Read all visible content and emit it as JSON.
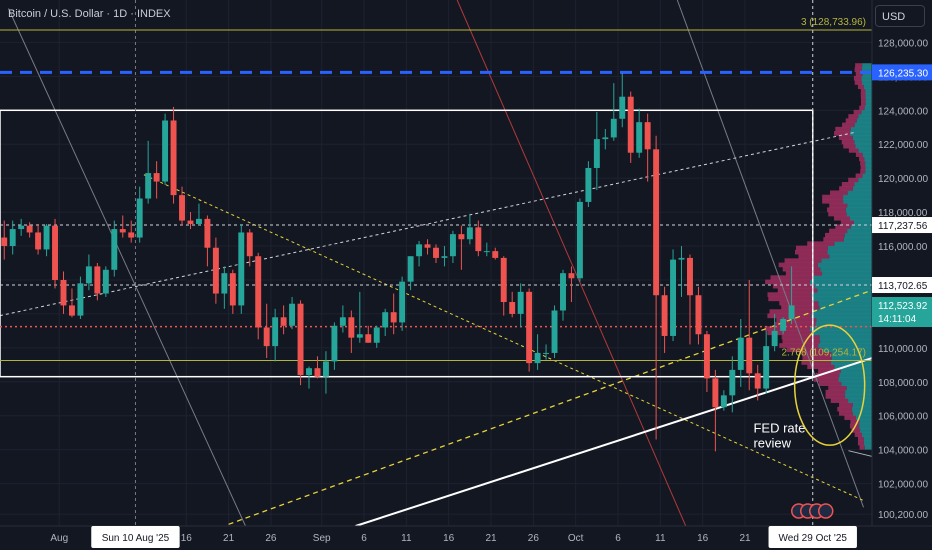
{
  "header": {
    "title": "Bitcoin / U.S. Dollar · 1D · INDEX"
  },
  "currency": "USD",
  "colors": {
    "bg": "#131722",
    "up": "#26a69a",
    "down": "#ef5350",
    "grid": "#1e2230",
    "axis_text": "#b2b5be",
    "blue_level": "#2962ff",
    "fib": "#b5b43a",
    "volume_profile_up": "#1d8a8e",
    "volume_profile_down": "#9b2d5d"
  },
  "chart_data": {
    "type": "candlestick",
    "title": "Bitcoin / U.S. Dollar · 1D · INDEX",
    "ylim": [
      99500,
      130500
    ],
    "x_range": [
      "2025-07-25",
      "2025-11-05"
    ],
    "y_ticks": [
      "128,000.00",
      "126,000.00",
      "124,000.00",
      "122,000.00",
      "120,000.00",
      "118,000.00",
      "116,000.00",
      "114,000.00",
      "112,000.00",
      "110,000.00",
      "108,000.00",
      "106,000.00",
      "104,000.00",
      "102,000.00",
      "100,200.00"
    ],
    "x_ticks": [
      {
        "date": "2025-08-01",
        "label": "Aug"
      },
      {
        "date": "2025-08-16",
        "label": "16"
      },
      {
        "date": "2025-08-21",
        "label": "21"
      },
      {
        "date": "2025-08-26",
        "label": "26"
      },
      {
        "date": "2025-09-01",
        "label": "Sep"
      },
      {
        "date": "2025-09-06",
        "label": "6"
      },
      {
        "date": "2025-09-11",
        "label": "11"
      },
      {
        "date": "2025-09-16",
        "label": "16"
      },
      {
        "date": "2025-09-21",
        "label": "21"
      },
      {
        "date": "2025-09-26",
        "label": "26"
      },
      {
        "date": "2025-10-01",
        "label": "Oct"
      },
      {
        "date": "2025-10-06",
        "label": "6"
      },
      {
        "date": "2025-10-11",
        "label": "11"
      },
      {
        "date": "2025-10-16",
        "label": "16"
      },
      {
        "date": "2025-10-21",
        "label": "21"
      }
    ],
    "x_cursor": {
      "date": "2025-08-10",
      "label": "Sun 10 Aug '25"
    },
    "x_cursor_right": {
      "date": "2025-10-29",
      "label": "Wed 29 Oct '25"
    },
    "price_labels": [
      {
        "value": 126235.3,
        "label": "126,235.30",
        "color": "#2962ff"
      },
      {
        "value": 117237.56,
        "label": "117,237.56",
        "color": "#ffffff"
      },
      {
        "value": 113702.65,
        "label": "113,702.65",
        "color": "#ffffff"
      },
      {
        "value": 112523.92,
        "label": "112,523.92",
        "sublabel": "14:11:04",
        "color": "#26a69a"
      }
    ],
    "candles": [
      {
        "d": "2025-07-25",
        "o": 116500,
        "h": 117500,
        "l": 115200,
        "c": 116000
      },
      {
        "d": "2025-07-26",
        "o": 116000,
        "h": 117500,
        "l": 115500,
        "c": 117000
      },
      {
        "d": "2025-07-27",
        "o": 117000,
        "h": 117600,
        "l": 116600,
        "c": 117200
      },
      {
        "d": "2025-07-28",
        "o": 117200,
        "h": 117400,
        "l": 116500,
        "c": 116800
      },
      {
        "d": "2025-07-29",
        "o": 116800,
        "h": 117300,
        "l": 115500,
        "c": 115800
      },
      {
        "d": "2025-07-30",
        "o": 115800,
        "h": 117300,
        "l": 115400,
        "c": 117200
      },
      {
        "d": "2025-07-31",
        "o": 117200,
        "h": 117600,
        "l": 113500,
        "c": 114000
      },
      {
        "d": "2025-08-01",
        "o": 114000,
        "h": 114500,
        "l": 112000,
        "c": 112500
      },
      {
        "d": "2025-08-02",
        "o": 112500,
        "h": 113500,
        "l": 111800,
        "c": 111900
      },
      {
        "d": "2025-08-03",
        "o": 111900,
        "h": 114200,
        "l": 111700,
        "c": 113800
      },
      {
        "d": "2025-08-04",
        "o": 113800,
        "h": 115500,
        "l": 113400,
        "c": 114800
      },
      {
        "d": "2025-08-05",
        "o": 114800,
        "h": 115000,
        "l": 112800,
        "c": 113200
      },
      {
        "d": "2025-08-06",
        "o": 113200,
        "h": 114800,
        "l": 113000,
        "c": 114600
      },
      {
        "d": "2025-08-07",
        "o": 114600,
        "h": 117500,
        "l": 114200,
        "c": 117000
      },
      {
        "d": "2025-08-08",
        "o": 117000,
        "h": 117800,
        "l": 116500,
        "c": 116800
      },
      {
        "d": "2025-08-09",
        "o": 116800,
        "h": 117500,
        "l": 116200,
        "c": 116500
      },
      {
        "d": "2025-08-10",
        "o": 116500,
        "h": 119500,
        "l": 116200,
        "c": 118800
      },
      {
        "d": "2025-08-11",
        "o": 118800,
        "h": 122200,
        "l": 118500,
        "c": 120300
      },
      {
        "d": "2025-08-12",
        "o": 120300,
        "h": 121000,
        "l": 118800,
        "c": 119800
      },
      {
        "d": "2025-08-13",
        "o": 119800,
        "h": 123800,
        "l": 119600,
        "c": 123400
      },
      {
        "d": "2025-08-14",
        "o": 123400,
        "h": 124200,
        "l": 118500,
        "c": 119000
      },
      {
        "d": "2025-08-15",
        "o": 119000,
        "h": 119500,
        "l": 117200,
        "c": 117500
      },
      {
        "d": "2025-08-16",
        "o": 117500,
        "h": 118000,
        "l": 117000,
        "c": 117300
      },
      {
        "d": "2025-08-17",
        "o": 117300,
        "h": 118500,
        "l": 117200,
        "c": 117600
      },
      {
        "d": "2025-08-18",
        "o": 117600,
        "h": 117800,
        "l": 114800,
        "c": 115900
      },
      {
        "d": "2025-08-19",
        "o": 115900,
        "h": 116500,
        "l": 112600,
        "c": 113200
      },
      {
        "d": "2025-08-20",
        "o": 113200,
        "h": 114800,
        "l": 112300,
        "c": 114400
      },
      {
        "d": "2025-08-21",
        "o": 114400,
        "h": 114600,
        "l": 112000,
        "c": 112500
      },
      {
        "d": "2025-08-22",
        "o": 112500,
        "h": 117300,
        "l": 112000,
        "c": 116800
      },
      {
        "d": "2025-08-23",
        "o": 116800,
        "h": 117000,
        "l": 114800,
        "c": 115400
      },
      {
        "d": "2025-08-24",
        "o": 115400,
        "h": 115600,
        "l": 110500,
        "c": 111200
      },
      {
        "d": "2025-08-25",
        "o": 111200,
        "h": 112600,
        "l": 109400,
        "c": 110100
      },
      {
        "d": "2025-08-26",
        "o": 110100,
        "h": 112300,
        "l": 109200,
        "c": 111800
      },
      {
        "d": "2025-08-27",
        "o": 111800,
        "h": 112500,
        "l": 110800,
        "c": 111300
      },
      {
        "d": "2025-08-28",
        "o": 111300,
        "h": 113000,
        "l": 111100,
        "c": 112600
      },
      {
        "d": "2025-08-29",
        "o": 112600,
        "h": 112800,
        "l": 107800,
        "c": 108400
      },
      {
        "d": "2025-08-30",
        "o": 108400,
        "h": 108900,
        "l": 107600,
        "c": 108800
      },
      {
        "d": "2025-08-31",
        "o": 108800,
        "h": 109500,
        "l": 108200,
        "c": 108300
      },
      {
        "d": "2025-09-01",
        "o": 108300,
        "h": 109800,
        "l": 107300,
        "c": 109200
      },
      {
        "d": "2025-09-02",
        "o": 109200,
        "h": 111500,
        "l": 108700,
        "c": 111300
      },
      {
        "d": "2025-09-03",
        "o": 111300,
        "h": 112500,
        "l": 110900,
        "c": 111800
      },
      {
        "d": "2025-09-04",
        "o": 111800,
        "h": 112200,
        "l": 109700,
        "c": 110600
      },
      {
        "d": "2025-09-05",
        "o": 110600,
        "h": 113300,
        "l": 110300,
        "c": 110800
      },
      {
        "d": "2025-09-06",
        "o": 110800,
        "h": 111300,
        "l": 110300,
        "c": 110300
      },
      {
        "d": "2025-09-07",
        "o": 110300,
        "h": 111300,
        "l": 110000,
        "c": 111200
      },
      {
        "d": "2025-09-08",
        "o": 111200,
        "h": 112300,
        "l": 110700,
        "c": 112100
      },
      {
        "d": "2025-09-09",
        "o": 112100,
        "h": 113200,
        "l": 110800,
        "c": 111500
      },
      {
        "d": "2025-09-10",
        "o": 111500,
        "h": 114200,
        "l": 111000,
        "c": 113900
      },
      {
        "d": "2025-09-11",
        "o": 113900,
        "h": 115400,
        "l": 113400,
        "c": 115400
      },
      {
        "d": "2025-09-12",
        "o": 115400,
        "h": 116300,
        "l": 114800,
        "c": 116100
      },
      {
        "d": "2025-09-13",
        "o": 116100,
        "h": 116400,
        "l": 115500,
        "c": 115900
      },
      {
        "d": "2025-09-14",
        "o": 115900,
        "h": 116100,
        "l": 115000,
        "c": 115300
      },
      {
        "d": "2025-09-15",
        "o": 115300,
        "h": 116000,
        "l": 114800,
        "c": 115400
      },
      {
        "d": "2025-09-16",
        "o": 115400,
        "h": 116900,
        "l": 115000,
        "c": 116700
      },
      {
        "d": "2025-09-17",
        "o": 116700,
        "h": 117200,
        "l": 114600,
        "c": 116400
      },
      {
        "d": "2025-09-18",
        "o": 116400,
        "h": 117900,
        "l": 116100,
        "c": 117100
      },
      {
        "d": "2025-09-19",
        "o": 117100,
        "h": 117500,
        "l": 115400,
        "c": 115700
      },
      {
        "d": "2025-09-20",
        "o": 115700,
        "h": 116200,
        "l": 115400,
        "c": 115700
      },
      {
        "d": "2025-09-21",
        "o": 115700,
        "h": 115900,
        "l": 115200,
        "c": 115300
      },
      {
        "d": "2025-09-22",
        "o": 115300,
        "h": 115400,
        "l": 111900,
        "c": 112700
      },
      {
        "d": "2025-09-23",
        "o": 112700,
        "h": 113300,
        "l": 111800,
        "c": 112000
      },
      {
        "d": "2025-09-24",
        "o": 112000,
        "h": 113800,
        "l": 111200,
        "c": 113300
      },
      {
        "d": "2025-09-25",
        "o": 113300,
        "h": 113500,
        "l": 108600,
        "c": 109100
      },
      {
        "d": "2025-09-26",
        "o": 109100,
        "h": 110800,
        "l": 108700,
        "c": 109700
      },
      {
        "d": "2025-09-27",
        "o": 109700,
        "h": 110200,
        "l": 109300,
        "c": 109700
      },
      {
        "d": "2025-09-28",
        "o": 109700,
        "h": 112500,
        "l": 109400,
        "c": 112200
      },
      {
        "d": "2025-09-29",
        "o": 112200,
        "h": 114600,
        "l": 111600,
        "c": 114400
      },
      {
        "d": "2025-09-30",
        "o": 114400,
        "h": 114800,
        "l": 112700,
        "c": 114100
      },
      {
        "d": "2025-10-01",
        "o": 114100,
        "h": 118800,
        "l": 113900,
        "c": 118600
      },
      {
        "d": "2025-10-02",
        "o": 118600,
        "h": 121000,
        "l": 118300,
        "c": 120600
      },
      {
        "d": "2025-10-03",
        "o": 120600,
        "h": 123900,
        "l": 119300,
        "c": 122300
      },
      {
        "d": "2025-10-04",
        "o": 122300,
        "h": 122900,
        "l": 121700,
        "c": 122400
      },
      {
        "d": "2025-10-05",
        "o": 122400,
        "h": 125600,
        "l": 122200,
        "c": 123500
      },
      {
        "d": "2025-10-06",
        "o": 123500,
        "h": 126200,
        "l": 123000,
        "c": 124800
      },
      {
        "d": "2025-10-07",
        "o": 124800,
        "h": 125100,
        "l": 120900,
        "c": 121500
      },
      {
        "d": "2025-10-08",
        "o": 121500,
        "h": 124100,
        "l": 121200,
        "c": 123300
      },
      {
        "d": "2025-10-09",
        "o": 123300,
        "h": 123800,
        "l": 119800,
        "c": 121700
      },
      {
        "d": "2025-10-10",
        "o": 121700,
        "h": 122500,
        "l": 104600,
        "c": 113100
      },
      {
        "d": "2025-10-11",
        "o": 113100,
        "h": 113600,
        "l": 109700,
        "c": 110700
      },
      {
        "d": "2025-10-12",
        "o": 110700,
        "h": 115800,
        "l": 110400,
        "c": 115200
      },
      {
        "d": "2025-10-13",
        "o": 115200,
        "h": 116000,
        "l": 113000,
        "c": 115300
      },
      {
        "d": "2025-10-14",
        "o": 115300,
        "h": 115500,
        "l": 110200,
        "c": 113100
      },
      {
        "d": "2025-10-15",
        "o": 113100,
        "h": 113600,
        "l": 110200,
        "c": 110800
      },
      {
        "d": "2025-10-16",
        "o": 110800,
        "h": 111000,
        "l": 107400,
        "c": 108200
      },
      {
        "d": "2025-10-17",
        "o": 108200,
        "h": 108700,
        "l": 103900,
        "c": 106500
      },
      {
        "d": "2025-10-18",
        "o": 106500,
        "h": 107500,
        "l": 106300,
        "c": 107200
      },
      {
        "d": "2025-10-19",
        "o": 107200,
        "h": 109500,
        "l": 106200,
        "c": 108700
      },
      {
        "d": "2025-10-20",
        "o": 108700,
        "h": 111700,
        "l": 107700,
        "c": 110600
      },
      {
        "d": "2025-10-21",
        "o": 110600,
        "h": 114000,
        "l": 107500,
        "c": 108500
      },
      {
        "d": "2025-10-22",
        "o": 108500,
        "h": 109000,
        "l": 106900,
        "c": 107600
      },
      {
        "d": "2025-10-23",
        "o": 107600,
        "h": 111000,
        "l": 107300,
        "c": 110100
      },
      {
        "d": "2025-10-24",
        "o": 110100,
        "h": 112000,
        "l": 109800,
        "c": 111000
      },
      {
        "d": "2025-10-25",
        "o": 111000,
        "h": 111800,
        "l": 110800,
        "c": 111700
      },
      {
        "d": "2025-10-26",
        "o": 111700,
        "h": 114800,
        "l": 111400,
        "c": 112500
      }
    ],
    "horizontal_levels": [
      {
        "value": 126235.3,
        "style": "blue-dashed"
      },
      {
        "value": 117237.56,
        "style": "white-dashed"
      },
      {
        "value": 113702.65,
        "style": "white-dashed"
      },
      {
        "value": 111250,
        "style": "red-dotted"
      },
      {
        "value": 128733.96,
        "style": "fib",
        "label": "3 (128,733.96)"
      },
      {
        "value": 109254.17,
        "style": "fib",
        "label": "2.768 (109,254.17)"
      }
    ],
    "range_box": {
      "x0": "2025-07-25",
      "x1": "2025-10-29",
      "y_top": 124000,
      "y_bottom": 108300
    },
    "annotation": {
      "text_lines": [
        "FED rate",
        "review"
      ],
      "date": "2025-10-22",
      "value": 105000
    }
  }
}
